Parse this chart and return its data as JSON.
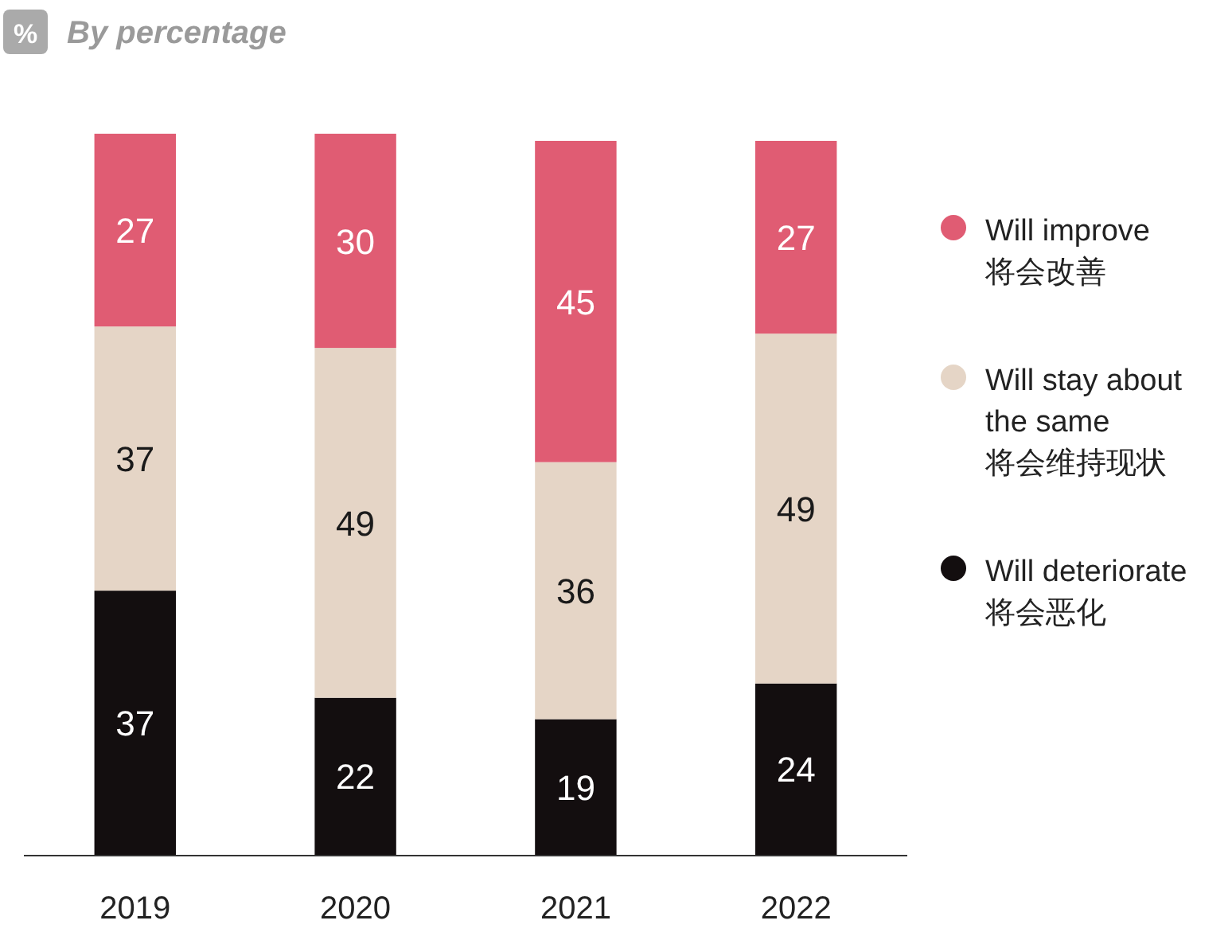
{
  "chart_data": {
    "type": "bar",
    "title": "By percentage",
    "annotations": [
      "%"
    ],
    "stacked": true,
    "data_labels": true,
    "legend": "right",
    "categories": [
      "2019",
      "2020",
      "2021",
      "2022"
    ],
    "series": [
      {
        "name": "Will deteriorate\n将会恶化",
        "color": "#130e0f",
        "values": [
          37,
          22,
          19,
          24
        ]
      },
      {
        "name": "Will stay about\nthe same\n将会维持现状",
        "color": "#e5d5c6",
        "values": [
          37,
          49,
          36,
          49
        ]
      },
      {
        "name": "Will improve\n将会改善",
        "color": "#e05c73",
        "values": [
          27,
          30,
          45,
          27
        ]
      }
    ]
  }
}
